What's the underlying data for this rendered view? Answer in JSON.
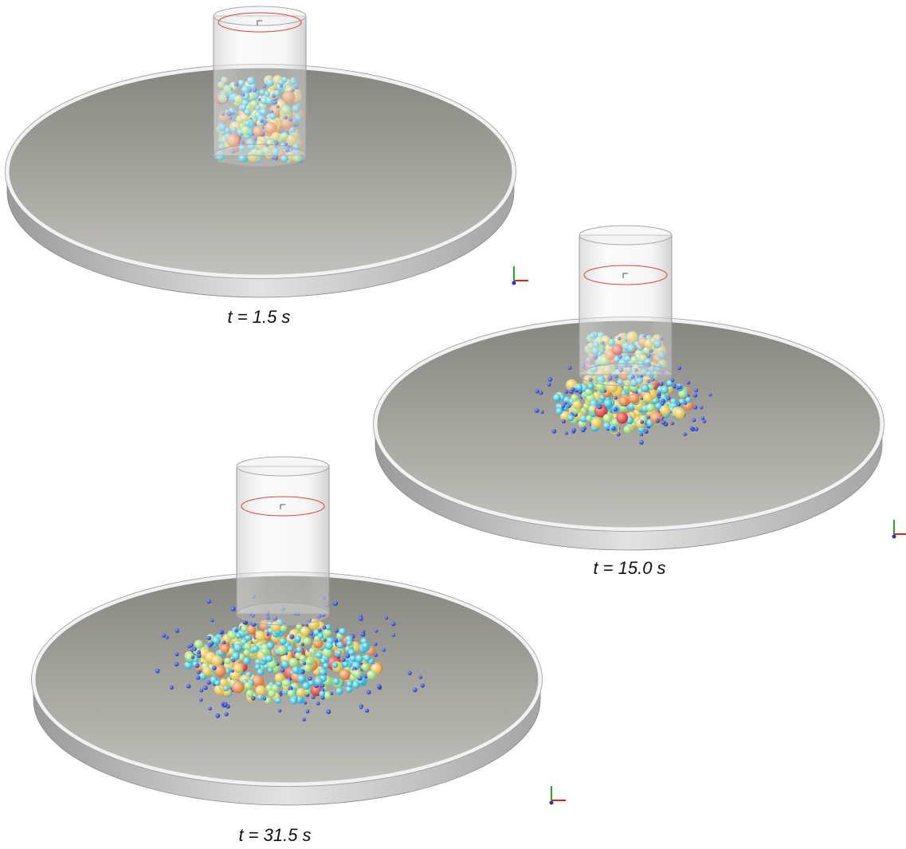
{
  "panels": [
    {
      "label": "t = 1.5 s"
    },
    {
      "label": "t = 15.0 s"
    },
    {
      "label": "t = 31.5 s"
    }
  ]
}
